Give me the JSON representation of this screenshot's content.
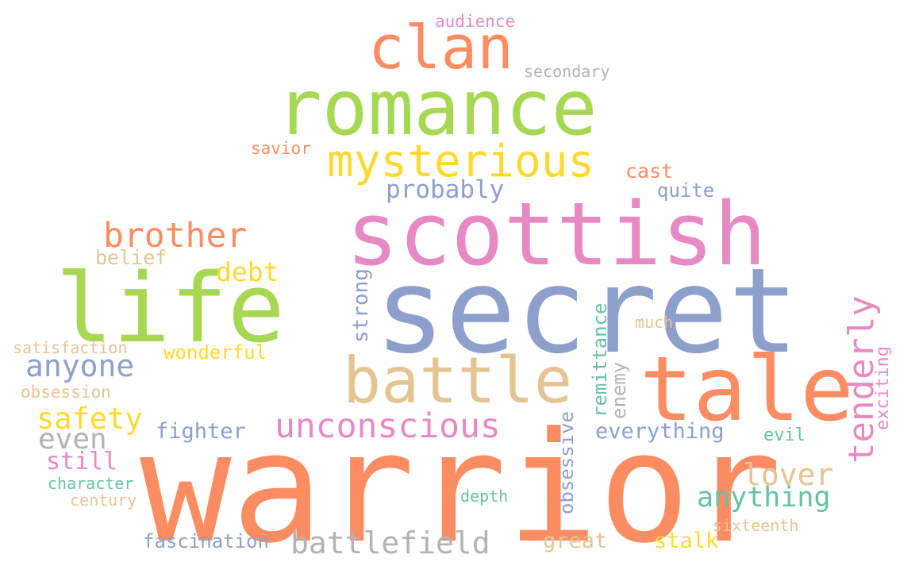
{
  "palette": {
    "orange": "#fc8d62",
    "green": "#a6d854",
    "pink": "#e78ac3",
    "blue": "#8da0cb",
    "yellow": "#ffd92f",
    "tan": "#e5c494",
    "gray": "#b3b3b3",
    "teal": "#66c2a5"
  },
  "words": {
    "warrior": "warrior",
    "secret": "secret",
    "scottish": "scottish",
    "romance": "romance",
    "life": "life",
    "tale": "tale",
    "battle": "battle",
    "clan": "clan",
    "mysterious": "mysterious",
    "brother": "brother",
    "unconscious": "unconscious",
    "tenderly": "tenderly",
    "battlefield": "battlefield",
    "anyone": "anyone",
    "safety": "safety",
    "probably": "probably",
    "even": "even",
    "lover": "lover",
    "anything": "anything",
    "everything": "everything",
    "debt": "debt",
    "fighter": "fighter",
    "still": "still",
    "belief": "belief",
    "wonderful": "wonderful",
    "strong": "strong",
    "cast": "cast",
    "quite": "quite",
    "savior": "savior",
    "remittance": "remittance",
    "enemy": "enemy",
    "obsessive": "obsessive",
    "exciting": "exciting",
    "great": "great",
    "stalk": "stalk",
    "fascination": "fascination",
    "obsession": "obsession",
    "satisfaction": "satisfaction",
    "character": "character",
    "century": "century",
    "secondary": "secondary",
    "audience": "audience",
    "much": "much",
    "depth": "depth",
    "evil": "evil",
    "sixteenth": "sixteenth"
  }
}
